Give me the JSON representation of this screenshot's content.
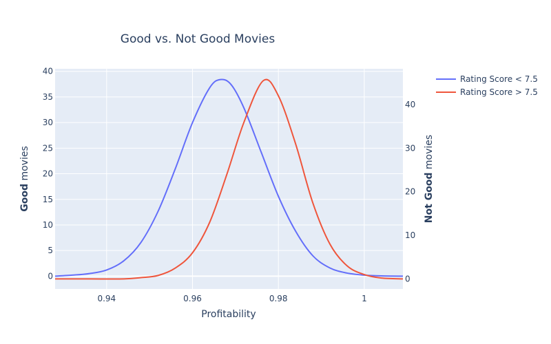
{
  "chart_data": {
    "type": "line",
    "title": "Good vs. Not Good Movies",
    "xlabel": "Profitability",
    "ylabel_left": {
      "bold": "Good",
      "rest": " movies"
    },
    "ylabel_right": {
      "bold": "Not Good",
      "rest": " movies"
    },
    "xlim": [
      0.928,
      1.009
    ],
    "ylim_left": [
      -2.5,
      40.5
    ],
    "ylim_right": [
      -2.3,
      48.2
    ],
    "x_ticks": [
      0.94,
      0.96,
      0.98,
      1.0
    ],
    "x_tick_labels": [
      "0.94",
      "0.96",
      "0.98",
      "1"
    ],
    "y_left_ticks": [
      0,
      5,
      10,
      15,
      20,
      25,
      30,
      35,
      40
    ],
    "y_left_tick_labels": [
      "0",
      "5",
      "10",
      "15",
      "20",
      "25",
      "30",
      "35",
      "40"
    ],
    "y_right_ticks": [
      0,
      10,
      20,
      30,
      40
    ],
    "y_right_tick_labels": [
      "0",
      "10",
      "20",
      "30",
      "40"
    ],
    "grid": true,
    "legend_position": "top-right",
    "series": [
      {
        "name": "Rating Score < 7.5",
        "axis": "left",
        "color": "#636efa",
        "x": [
          0.928,
          0.932,
          0.936,
          0.94,
          0.944,
          0.948,
          0.952,
          0.956,
          0.96,
          0.964,
          0.9665,
          0.969,
          0.972,
          0.976,
          0.98,
          0.984,
          0.988,
          0.992,
          0.996,
          1.0,
          1.004,
          1.009
        ],
        "y": [
          0.0,
          0.2,
          0.5,
          1.2,
          3.0,
          6.6,
          12.7,
          21.0,
          30.0,
          36.8,
          38.4,
          37.4,
          32.8,
          24.2,
          15.6,
          8.8,
          4.0,
          1.6,
          0.6,
          0.2,
          0.05,
          0.0
        ]
      },
      {
        "name": "Rating Score > 7.5",
        "axis": "right",
        "color": "#ef553b",
        "x": [
          0.928,
          0.936,
          0.944,
          0.948,
          0.952,
          0.956,
          0.96,
          0.964,
          0.968,
          0.972,
          0.9765,
          0.98,
          0.984,
          0.988,
          0.992,
          0.996,
          1.0,
          1.004,
          1.009
        ],
        "y": [
          0.0,
          0.0,
          0.0,
          0.3,
          0.8,
          2.5,
          6.0,
          13.0,
          24.0,
          36.0,
          45.5,
          42.0,
          31.0,
          17.5,
          8.0,
          3.0,
          1.0,
          0.2,
          0.0
        ]
      }
    ]
  }
}
